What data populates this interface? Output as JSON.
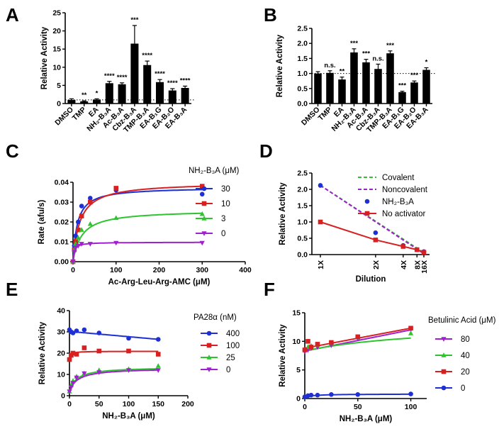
{
  "chart_data": [
    {
      "panel": "A",
      "type": "bar",
      "categories": [
        "DMSO",
        "TMP",
        "EA",
        "NH₂-B₃A",
        "Ac-B₃A",
        "Cbz-B₃A",
        "TMP-B₃A",
        "EA-B₁G",
        "EA-B₂O",
        "EA-B₃A"
      ],
      "values": [
        1.0,
        0.6,
        1.1,
        5.6,
        5.3,
        16.5,
        10.6,
        5.9,
        3.6,
        4.3
      ],
      "errors": [
        0.3,
        0.15,
        0.2,
        0.5,
        0.4,
        5.0,
        1.1,
        0.7,
        0.5,
        0.5
      ],
      "annotations": [
        "",
        "**",
        "*",
        "****",
        "****",
        "***",
        "****",
        "****",
        "****",
        "****"
      ],
      "reference_line": 1.0,
      "xlabel": "",
      "ylabel": "Relative Activity",
      "ylim": [
        0,
        25
      ],
      "yticks": [
        0,
        5,
        10,
        15,
        20,
        25
      ]
    },
    {
      "panel": "B",
      "type": "bar",
      "categories": [
        "DMSO",
        "TMP",
        "EA",
        "NH₂-B₃A",
        "Ac-B₃A",
        "Cbz-B₃A",
        "TMP-B₃A",
        "EA-B₁G",
        "EA-B₂O",
        "EA-B₃A"
      ],
      "values": [
        1.0,
        1.02,
        0.8,
        1.7,
        1.37,
        1.15,
        1.67,
        0.38,
        0.7,
        1.12
      ],
      "errors": [
        0.06,
        0.07,
        0.08,
        0.12,
        0.1,
        0.16,
        0.08,
        0.03,
        0.05,
        0.07
      ],
      "annotations": [
        "",
        "n.s.",
        "**",
        "***",
        "***",
        "n.s.",
        "***",
        "***",
        "***",
        "*"
      ],
      "reference_line": 1.0,
      "xlabel": "",
      "ylabel": "Relative Activity",
      "ylim": [
        0,
        2.5
      ],
      "yticks": [
        0.0,
        0.5,
        1.0,
        1.5,
        2.0,
        2.5
      ]
    },
    {
      "panel": "C",
      "type": "scatter",
      "xlabel": "Ac-Arg-Leu-Arg-AMC (μM)",
      "ylabel": "Rate (afu/s)",
      "xlim": [
        0,
        400
      ],
      "ylim": [
        0,
        0.04
      ],
      "xticks": [
        0,
        100,
        200,
        300,
        400
      ],
      "yticks": [
        0.0,
        0.01,
        0.02,
        0.03,
        0.04
      ],
      "legend_title": "NH₂-B₃A (μM)",
      "series": [
        {
          "name": "30",
          "color": "#1e2fd6",
          "marker": "circle",
          "x": [
            0,
            3,
            6,
            12,
            20,
            40,
            100,
            300
          ],
          "y": [
            0.0,
            0.008,
            0.013,
            0.02,
            0.028,
            0.032,
            0.036,
            0.034
          ],
          "fit": {
            "vmax": 0.0375,
            "km": 10
          }
        },
        {
          "name": "10",
          "color": "#d92020",
          "marker": "square",
          "x": [
            0,
            3,
            6,
            12,
            20,
            40,
            100,
            300
          ],
          "y": [
            0.0,
            0.006,
            0.01,
            0.016,
            0.023,
            0.03,
            0.037,
            0.038
          ],
          "fit": {
            "vmax": 0.04,
            "km": 16
          }
        },
        {
          "name": "3",
          "color": "#2ec42e",
          "marker": "triangle-up",
          "x": [
            0,
            3,
            6,
            12,
            20,
            40,
            100,
            300
          ],
          "y": [
            0.0,
            0.006,
            0.009,
            0.012,
            0.016,
            0.019,
            0.022,
            0.024
          ],
          "fit": {
            "vmax": 0.026,
            "km": 20
          }
        },
        {
          "name": "0",
          "color": "#a020d0",
          "marker": "triangle-down",
          "x": [
            0,
            3,
            6,
            12,
            20,
            40,
            100,
            300
          ],
          "y": [
            0.0,
            0.005,
            0.007,
            0.008,
            0.009,
            0.009,
            0.0095,
            0.0095
          ],
          "fit": {
            "vmax": 0.0098,
            "km": 3
          }
        }
      ]
    },
    {
      "panel": "D",
      "type": "line",
      "xlabel": "Dilution",
      "ylabel": "Relative Activity",
      "ylim": [
        0,
        2.5
      ],
      "yticks": [
        0.0,
        0.5,
        1.0,
        1.5,
        2.0,
        2.5
      ],
      "x_categories": [
        "1X",
        "2X",
        "4X",
        "8X",
        "16X"
      ],
      "x_values": [
        1,
        2,
        4,
        8,
        16
      ],
      "series": [
        {
          "name": "Covalent",
          "color": "#2ec42e",
          "style": "dashed",
          "x": [
            1,
            16
          ],
          "y": [
            2.12,
            0.06
          ]
        },
        {
          "name": "Noncovalent",
          "color": "#a020d0",
          "style": "dashed",
          "x": [
            1,
            16
          ],
          "y": [
            2.12,
            0.03
          ]
        },
        {
          "name": "NH₂-B₃A",
          "color": "#1e2fd6",
          "style": "points",
          "marker": "circle",
          "x": [
            1,
            2,
            4,
            8,
            16
          ],
          "y": [
            2.12,
            0.67,
            0.28,
            0.15,
            0.09
          ]
        },
        {
          "name": "No activator",
          "color": "#d92020",
          "style": "line",
          "marker": "square",
          "x": [
            1,
            2,
            4,
            8,
            16
          ],
          "y": [
            1.0,
            0.45,
            0.25,
            0.15,
            0.07
          ]
        }
      ]
    },
    {
      "panel": "E",
      "type": "scatter",
      "xlabel": "NH₂-B₃A (μM)",
      "ylabel": "Relative Activity",
      "xlim": [
        0,
        200
      ],
      "ylim": [
        0,
        40
      ],
      "xticks": [
        0,
        50,
        100,
        150,
        200
      ],
      "yticks": [
        0,
        10,
        20,
        30,
        40
      ],
      "legend_title": "PA28α (nM)",
      "series": [
        {
          "name": "400",
          "color": "#1e2fd6",
          "marker": "circle",
          "x": [
            0,
            3,
            6,
            12,
            25,
            50,
            100,
            150
          ],
          "y": [
            31,
            30,
            29.5,
            30.5,
            31,
            29.5,
            27,
            26.5
          ],
          "fit": {
            "type": "linear",
            "x0": 0,
            "y0": 30.2,
            "x1": 150,
            "y1": 26.5
          }
        },
        {
          "name": "100",
          "color": "#d92020",
          "marker": "square",
          "x": [
            0,
            3,
            6,
            12,
            25,
            50,
            100,
            150
          ],
          "y": [
            17,
            19,
            20,
            19.5,
            22.5,
            21,
            21,
            19.5
          ],
          "fit": {
            "type": "hyperbolic",
            "base": 17,
            "amp": 3.9,
            "k": 2
          }
        },
        {
          "name": "25",
          "color": "#2ec42e",
          "marker": "triangle-up",
          "x": [
            0,
            3,
            6,
            12,
            25,
            50,
            100,
            150
          ],
          "y": [
            2,
            5,
            7,
            9,
            10.5,
            12,
            12.5,
            14
          ],
          "fit": {
            "type": "hyperbolic",
            "base": 2,
            "amp": 11.5,
            "k": 12
          }
        },
        {
          "name": "0",
          "color": "#a020d0",
          "marker": "triangle-down",
          "x": [
            0,
            3,
            6,
            12,
            25,
            50,
            100,
            150
          ],
          "y": [
            2,
            4,
            6,
            8.5,
            10.5,
            11,
            12,
            12
          ],
          "fit": {
            "type": "hyperbolic",
            "base": 2,
            "amp": 11,
            "k": 14
          }
        }
      ]
    },
    {
      "panel": "F",
      "type": "scatter",
      "xlabel": "NH₂-B₃A (μM)",
      "ylabel": "Relative Activity",
      "xlim": [
        0,
        115
      ],
      "ylim": [
        0,
        15
      ],
      "xticks": [
        0,
        50,
        100
      ],
      "yticks": [
        0,
        5,
        10,
        15
      ],
      "legend_title": "Betulinic Acid (μM)",
      "series": [
        {
          "name": "80",
          "color": "#a020d0",
          "marker": "triangle-down",
          "x": [
            0,
            3,
            6,
            12,
            25,
            50,
            100
          ],
          "y": [
            8.2,
            8.5,
            8.8,
            9.0,
            9.3,
            10.5,
            12.1
          ],
          "fit": {
            "type": "linear",
            "x0": 0,
            "y0": 8.3,
            "x1": 100,
            "y1": 12.0
          }
        },
        {
          "name": "40",
          "color": "#2ec42e",
          "marker": "triangle-up",
          "x": [
            0,
            3,
            6,
            12,
            25,
            50,
            100
          ],
          "y": [
            8.5,
            9.0,
            9.2,
            9.4,
            9.7,
            10.7,
            11.4
          ],
          "fit": {
            "type": "hyperbolic",
            "base": 8.3,
            "amp": 5.0,
            "k": 120
          }
        },
        {
          "name": "20",
          "color": "#d92020",
          "marker": "square",
          "x": [
            0,
            3,
            6,
            12,
            25,
            50,
            100
          ],
          "y": [
            8.5,
            10.0,
            9.0,
            9.5,
            9.8,
            10.8,
            12.3
          ],
          "fit": {
            "type": "linear",
            "x0": 0,
            "y0": 8.8,
            "x1": 100,
            "y1": 12.3
          }
        },
        {
          "name": "0",
          "color": "#1e2fd6",
          "marker": "circle",
          "x": [
            0,
            3,
            6,
            12,
            25,
            50,
            100
          ],
          "y": [
            0.3,
            0.5,
            0.6,
            0.6,
            0.7,
            0.7,
            0.8
          ],
          "fit": {
            "type": "hyperbolic",
            "base": 0.3,
            "amp": 0.5,
            "k": 10
          }
        }
      ]
    }
  ],
  "panel_labels": [
    "A",
    "B",
    "C",
    "D",
    "E",
    "F"
  ]
}
